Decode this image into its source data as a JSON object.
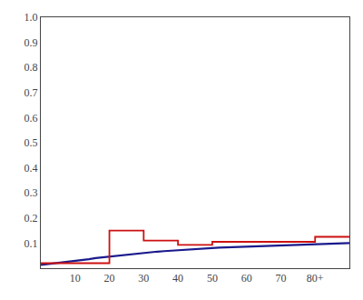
{
  "chart_data": {
    "type": "line",
    "series": [
      {
        "color": "#1a1a8c",
        "x": [
          0,
          2,
          4,
          6,
          8,
          10,
          12,
          14,
          16,
          18,
          20,
          22,
          24,
          26,
          28,
          30,
          32,
          34,
          36,
          38,
          40,
          42,
          44,
          46,
          48,
          50,
          52,
          54,
          56,
          58,
          60,
          62,
          64,
          66,
          68,
          70,
          72,
          74,
          76,
          78,
          80,
          82,
          84,
          86,
          88,
          90
        ],
        "values": [
          0.013,
          0.016,
          0.019,
          0.022,
          0.026,
          0.029,
          0.033,
          0.036,
          0.04,
          0.043,
          0.047,
          0.05,
          0.053,
          0.056,
          0.059,
          0.062,
          0.064,
          0.066,
          0.068,
          0.07,
          0.072,
          0.074,
          0.076,
          0.077,
          0.079,
          0.08,
          0.082,
          0.083,
          0.084,
          0.086,
          0.087,
          0.088,
          0.089,
          0.09,
          0.091,
          0.092,
          0.093,
          0.094,
          0.095,
          0.096,
          0.097,
          0.097,
          0.098,
          0.099,
          0.099,
          0.1
        ]
      },
      {
        "color": "#cc1111",
        "x": [
          0,
          20,
          20,
          30,
          30,
          40,
          40,
          50,
          50,
          60,
          60,
          70,
          70,
          80,
          80,
          90
        ],
        "values": [
          0.02,
          0.02,
          0.15,
          0.15,
          0.11,
          0.11,
          0.093,
          0.093,
          0.105,
          0.105,
          0.105,
          0.105,
          0.105,
          0.105,
          0.125,
          0.125
        ]
      }
    ],
    "xlim": [
      0,
      90
    ],
    "ylim": [
      0,
      1.0
    ],
    "xticks": [
      10,
      20,
      30,
      40,
      50,
      60,
      70,
      {
        "value": 80,
        "label": "80+"
      }
    ],
    "yticks": [
      0.1,
      0.2,
      0.3,
      0.4,
      0.5,
      0.6,
      0.7,
      0.8,
      0.9,
      {
        "value": 1.0,
        "label": "1.0"
      }
    ],
    "grid": false
  }
}
